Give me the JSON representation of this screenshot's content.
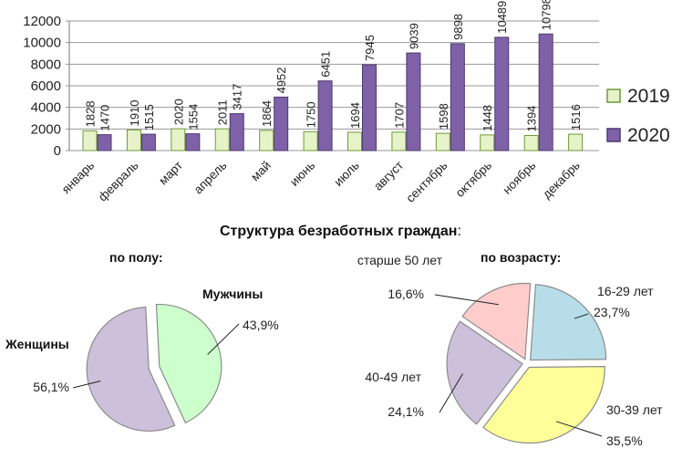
{
  "chart_data": [
    {
      "type": "bar",
      "categories": [
        "январь",
        "февраль",
        "март",
        "апрель",
        "май",
        "июнь",
        "июль",
        "август",
        "сентябрь",
        "октябрь",
        "ноябрь",
        "декабрь"
      ],
      "series": [
        {
          "name": "2019",
          "color": "#e6f2c8",
          "edge": "#6f9a3a",
          "values": [
            1828,
            1910,
            2020,
            2011,
            1864,
            1750,
            1694,
            1707,
            1598,
            1448,
            1394,
            1516
          ]
        },
        {
          "name": "2020",
          "color": "#7f61a8",
          "edge": "#4c3a6e",
          "values": [
            1470,
            1515,
            1554,
            3417,
            4952,
            6451,
            7945,
            9039,
            9898,
            10489,
            10798,
            null
          ]
        }
      ],
      "yticks": [
        0,
        2000,
        4000,
        6000,
        8000,
        10000,
        12000
      ],
      "ylim": [
        0,
        12000
      ],
      "grid": true,
      "legend": "right"
    },
    {
      "type": "pie",
      "title": "по полу:",
      "slices": [
        {
          "label": "Мужчины",
          "value": 43.9,
          "text": "43,9%",
          "color": "#ccffcc"
        },
        {
          "label": "Женщины",
          "value": 56.1,
          "text": "56,1%",
          "color": "#ccc0da"
        }
      ]
    },
    {
      "type": "pie",
      "title": "по возрасту:",
      "slices": [
        {
          "label": "16-29 лет",
          "value": 23.7,
          "text": "23,7%",
          "color": "#b7dee8"
        },
        {
          "label": "30-39 лет",
          "value": 35.5,
          "text": "35,5%",
          "color": "#ffff99"
        },
        {
          "label": "40-49 лет",
          "value": 24.1,
          "text": "24,1%",
          "color": "#ccc0da"
        },
        {
          "label": "старше 50 лет",
          "value": 16.6,
          "text": "16,6%",
          "color": "#ffcccc"
        }
      ]
    }
  ],
  "structure_title": "Структура безработных граждан",
  "structure_colon": ":"
}
